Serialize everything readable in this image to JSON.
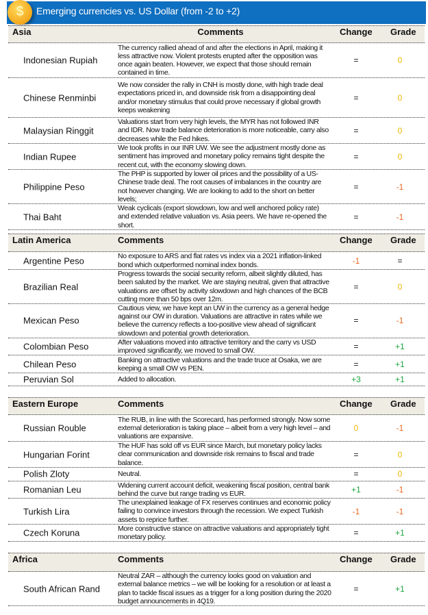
{
  "title": "Emerging currencies  vs. US Dollar (from -2 to +2)",
  "coin_icon": "dollar-coin-icon",
  "colors": {
    "banner": "#0f6fc0",
    "header_bg": "#efece4",
    "negative": "#e8661a",
    "neutral_zero": "#f0b400",
    "positive": "#1aa33a",
    "equal": "#111111"
  },
  "sections": [
    {
      "name": "Asia",
      "comments_label": "Comments",
      "change_label": "Change",
      "grade_label": "Grade",
      "rows": [
        {
          "currency": "Indonesian Rupiah",
          "comment": "The currency rallied ahead of and after the elections in April, making it less attractive now. Violent protests erupted after the opposition was once again beaten. However, we expect that those should remain contained in time.",
          "change": "=",
          "grade": "0"
        },
        {
          "currency": "Chinese Renminbi",
          "comment": "We now consider the rally in CNH is mostly done, with high trade deal expectations priced in, and downside risk from a disappointing deal and/or monetary stimulus that could prove necessary if global growth keeps weakening",
          "change": "=",
          "grade": "0"
        },
        {
          "currency": "Malaysian Ringgit",
          "comment": "Valuations start from very high levels, the MYR has not followed INR and IDR. Now trade balance deterioration is more noticeable, carry also decreases while the Fed hikes.",
          "change": "=",
          "grade": "0"
        },
        {
          "currency": "Indian Rupee",
          "comment": "We took profits in our INR UW. We see the adjustment mostly done as sentiment has improved and monetary policy remains tight despite the recent cut, with the economy slowing down.",
          "change": "=",
          "grade": "0"
        },
        {
          "currency": "Philippine Peso",
          "comment": "The PHP is supported by lower oil prices and the possibility of a US-Chinese trade deal. The root causes of imbalances in the country are not however changing. We are looking to add to the short on better levels;",
          "change": "=",
          "grade": "-1"
        },
        {
          "currency": "Thai  Baht",
          "comment": "Weak cyclicals (export slowdown, low and well anchored policy rate) and extended relative valuation vs. Asia peers. We have re-opened the short.",
          "change": "=",
          "grade": "-1"
        }
      ]
    },
    {
      "name": "Latin America",
      "comments_label": "Comments",
      "change_label": "Change",
      "grade_label": "Grade",
      "rows": [
        {
          "currency": "Argentine Peso",
          "comment": "No exposure to ARS and flat rates vs index via a 2021 inflation-linked bond which outperformed nominal index bonds.",
          "change": "-1",
          "grade": "="
        },
        {
          "currency": "Brazilian  Real",
          "comment": "Progress towards the social security reform, albeit slightly diluted, has been saluted by the market. We are staying neutral, given that attractive valuations are offset by activity slowdown and high chances of the BCB cutting more than 50 bps over 12m.",
          "change": "=",
          "grade": "0"
        },
        {
          "currency": "Mexican Peso",
          "comment": "Cautious view, we have kept an UW in the currency as a general hedge against our OW in duration. Valuations are attractive in rates while we believe the currency reflects a too-positive view ahead of significant slowdown and potential growth deterioration.",
          "change": "=",
          "grade": "-1"
        },
        {
          "currency": "Colombian Peso",
          "comment": "After valuations moved into attractive territory and the carry vs USD improved significantly, we moved to small OW.",
          "change": "=",
          "grade": "+1"
        },
        {
          "currency": "Chilean  Peso",
          "comment": "Banking on attractive valuations and the trade truce at Osaka, we are keeping a small OW vs PEN.",
          "change": "=",
          "grade": "+1"
        },
        {
          "currency": "Peruvian  Sol",
          "comment": "Added to allocation.",
          "change": "+3",
          "grade": "+1"
        }
      ]
    },
    {
      "name": "Eastern  Europe",
      "comments_label": "Comments",
      "change_label": "Change",
      "grade_label": "Grade",
      "rows": [
        {
          "currency": "Russian Rouble",
          "comment": "The RUB, in line with the Scorecard, has performed strongly. Now some external deterioration is taking place – albeit from a very high level – and valuations are expansive.",
          "change": "0",
          "grade": "-1"
        },
        {
          "currency": "Hungarian  Forint",
          "comment": "The HUF has sold off vs EUR since March, but monetary policy lacks clear communication and downside risk remains to fiscal and trade balance.",
          "change": "=",
          "grade": "0"
        },
        {
          "currency": "Polish Zloty",
          "comment": "Neutral.",
          "change": "=",
          "grade": "0"
        },
        {
          "currency": "Romanian  Leu",
          "comment": "Widening current account deficit, weakening fiscal position, central bank behind the curve but range trading vs EUR.",
          "change": "+1",
          "grade": "-1"
        },
        {
          "currency": "Turkish  Lira",
          "comment": "The unexplained leakage of FX reserves continues and economic policy failing to convince investors through the recession. We expect Turkish assets to reprice further.",
          "change": "-1",
          "grade": "-1"
        },
        {
          "currency": "Czech  Koruna",
          "comment": "More constructive stance on attractive valuations and appropriately tight monetary policy.",
          "change": "=",
          "grade": "+1"
        }
      ]
    },
    {
      "name": "Africa",
      "comments_label": "Comments",
      "change_label": "Change",
      "grade_label": "Grade",
      "rows": [
        {
          "currency": "South African Rand",
          "comment": "Neutral ZAR – although the currency looks good on valuation and external balance metrics – we will be looking for a resolution or at least a plan to tackle fiscal issues as a trigger for a long position during the 2020 budget announcements in 4Q19.",
          "change": "=",
          "grade": "+1"
        }
      ]
    }
  ]
}
